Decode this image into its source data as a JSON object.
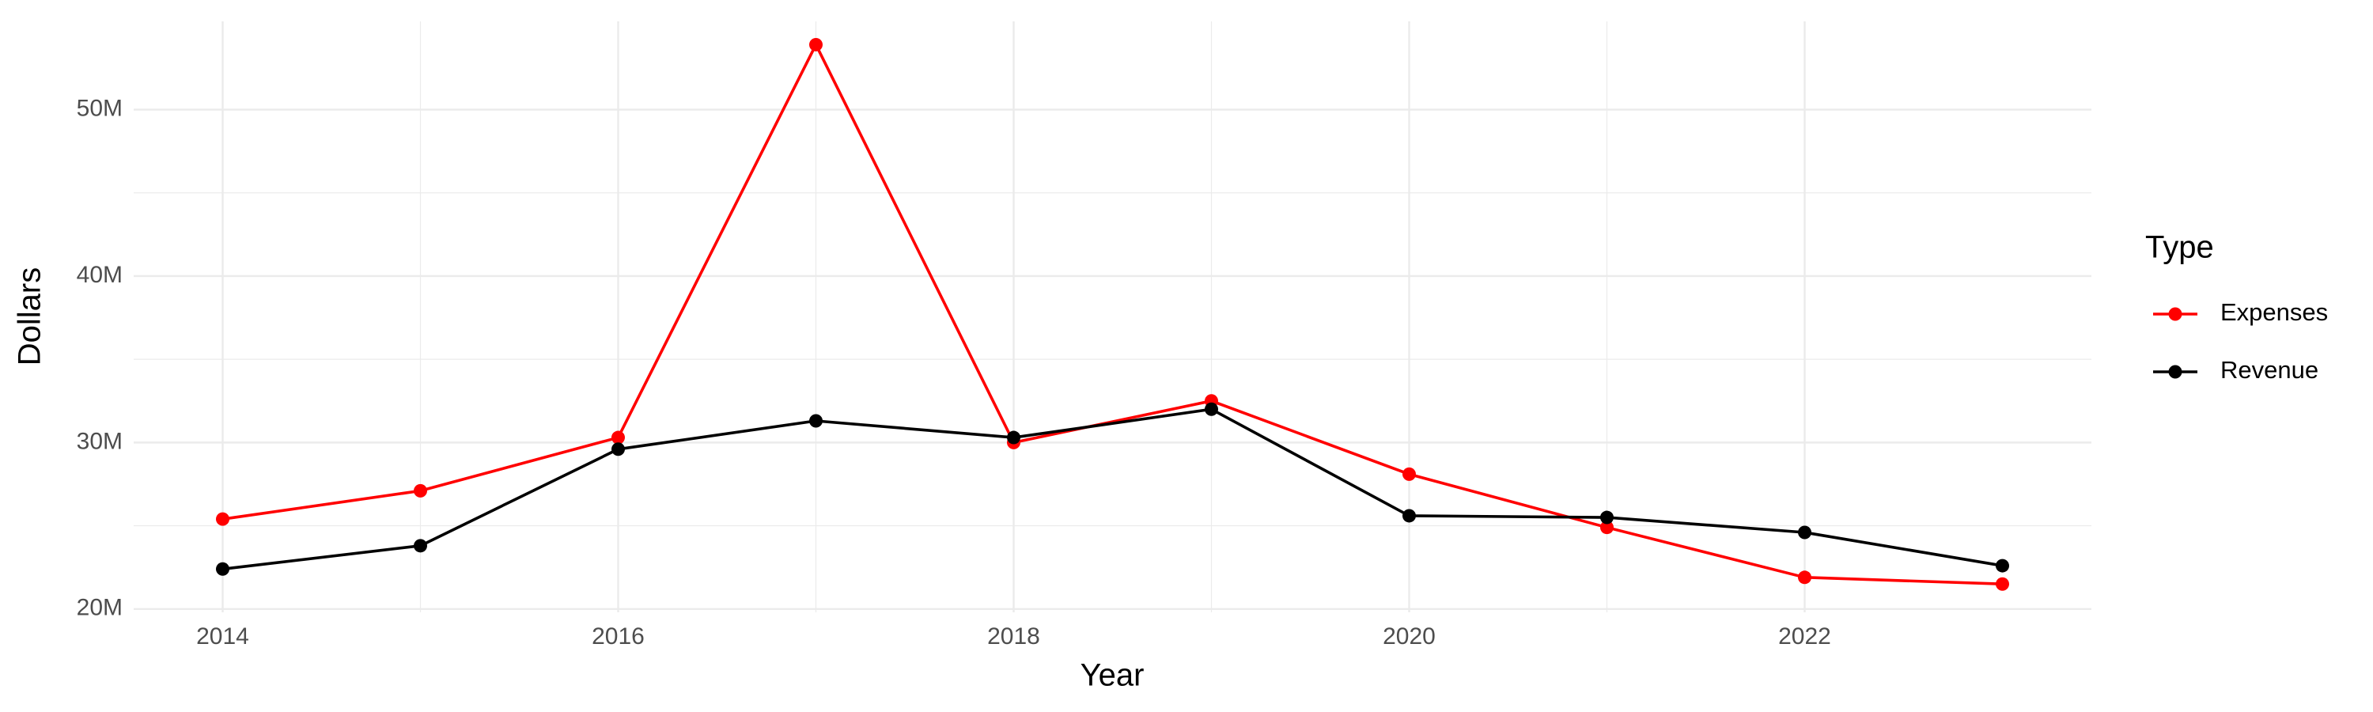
{
  "chart_data": {
    "type": "line",
    "x": [
      2014,
      2015,
      2016,
      2017,
      2018,
      2019,
      2020,
      2021,
      2022,
      2023
    ],
    "series": [
      {
        "name": "Expenses",
        "color": "#ff0000",
        "values": [
          25400000,
          27100000,
          30300000,
          53900000,
          30000000,
          32500000,
          28100000,
          24900000,
          21900000,
          21500000
        ]
      },
      {
        "name": "Revenue",
        "color": "#000000",
        "values": [
          22400000,
          23800000,
          29600000,
          31300000,
          30300000,
          32000000,
          25600000,
          25500000,
          24600000,
          22600000
        ]
      }
    ],
    "xlabel": "Year",
    "ylabel": "Dollars",
    "legend_title": "Type",
    "xlim": [
      2013.55,
      2023.45
    ],
    "xticks": [
      2014,
      2016,
      2018,
      2020,
      2022
    ],
    "ylim": [
      19800000,
      55300000
    ],
    "yticks": [
      {
        "value": 20000000,
        "label": "20M"
      },
      {
        "value": 30000000,
        "label": "30M"
      },
      {
        "value": 40000000,
        "label": "40M"
      },
      {
        "value": 50000000,
        "label": "50M"
      }
    ],
    "grid": true,
    "legend": "right"
  }
}
